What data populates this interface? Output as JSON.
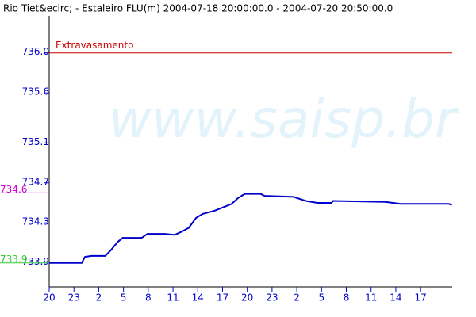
{
  "chart_data": {
    "type": "line",
    "title": "Rio Tiet&ecirc; - Estaleiro FLU(m) 2004-07-18 20:00:00.0 - 2004-07-20 20:50:00.0",
    "watermark": "www.saisp.br",
    "x": [
      0,
      3.94,
      4.33,
      5.1,
      6.8,
      7.5,
      8.3,
      8.9,
      11.2,
      11.9,
      14.0,
      15.2,
      16.0,
      16.9,
      17.8,
      18.6,
      20.0,
      21.2,
      22.1,
      22.9,
      23.7,
      25.6,
      26.1,
      29.6,
      31.1,
      32.5,
      34.2,
      34.4,
      40.7,
      42.6,
      44.5,
      45.0,
      48.4,
      48.8
    ],
    "series": [
      {
        "color": "#0000cc",
        "values": [
          733.9,
          733.9,
          733.96,
          733.97,
          733.97,
          734.03,
          734.11,
          734.15,
          734.15,
          734.19,
          734.19,
          734.18,
          734.21,
          734.25,
          734.35,
          734.39,
          734.42,
          734.46,
          734.49,
          734.55,
          734.59,
          734.59,
          734.57,
          734.56,
          734.52,
          734.5,
          734.5,
          734.52,
          734.51,
          734.49,
          734.49,
          734.49,
          734.49,
          734.48
        ]
      }
    ],
    "xlim": [
      0,
      48.83
    ],
    "xticks": [
      {
        "value": 0,
        "label": "20"
      },
      {
        "value": 3,
        "label": "23"
      },
      {
        "value": 6,
        "label": "2"
      },
      {
        "value": 9,
        "label": "5"
      },
      {
        "value": 12,
        "label": "8"
      },
      {
        "value": 15,
        "label": "11"
      },
      {
        "value": 18,
        "label": "14"
      },
      {
        "value": 21,
        "label": "17"
      },
      {
        "value": 24,
        "label": "20"
      },
      {
        "value": 27,
        "label": "23"
      },
      {
        "value": 30,
        "label": "2"
      },
      {
        "value": 33,
        "label": "5"
      },
      {
        "value": 36,
        "label": "8"
      },
      {
        "value": 39,
        "label": "11"
      },
      {
        "value": 42,
        "label": "14"
      },
      {
        "value": 45,
        "label": "17"
      }
    ],
    "ylim": [
      733.66,
      736.37
    ],
    "yticks": [
      {
        "value": 736,
        "label": "736.0"
      },
      735.6,
      735.1,
      734.7,
      734.3,
      733.9
    ],
    "threshold": {
      "label": "Extravasamento",
      "value": 736,
      "color": "#cc0000"
    },
    "side_labels": [
      {
        "label": "734.6",
        "value": 734.6,
        "color": "#cc00cc"
      },
      {
        "label": "733.9",
        "value": 733.9,
        "color": "#33cc33"
      }
    ]
  }
}
